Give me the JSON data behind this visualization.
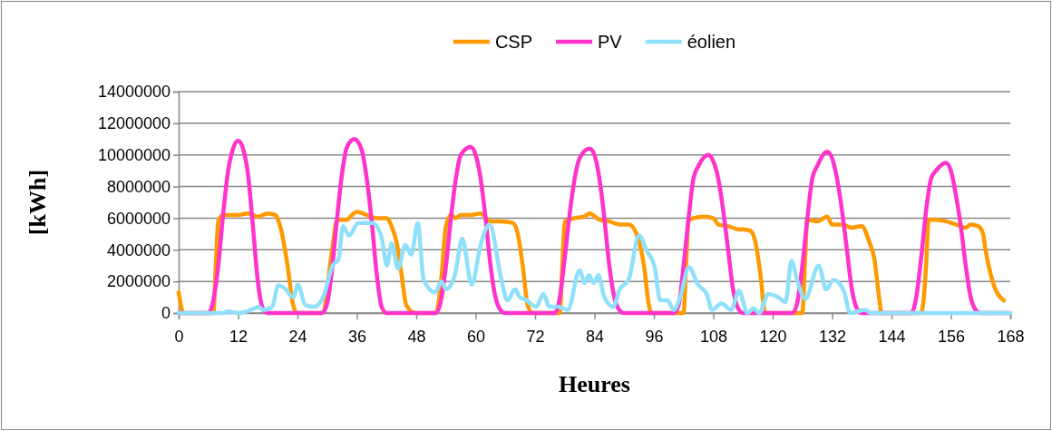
{
  "chart_data": {
    "type": "line",
    "xlabel": "Heures",
    "ylabel": "[kWh]",
    "xlim": [
      0,
      168
    ],
    "xticks": [
      0,
      12,
      24,
      36,
      48,
      60,
      72,
      84,
      96,
      108,
      120,
      132,
      144,
      156,
      168
    ],
    "ylim": [
      0,
      14000000
    ],
    "yticks": [
      0,
      2000000,
      4000000,
      6000000,
      8000000,
      10000000,
      12000000,
      14000000
    ],
    "grid": "y",
    "legend": "top",
    "marker": "none",
    "line_style": "solid",
    "series": [
      {
        "name": "CSP",
        "color": "#ff9900",
        "x": [
          0,
          1,
          7,
          7.5,
          8,
          9,
          12,
          14,
          16,
          18,
          19.5,
          20.5,
          22,
          23,
          23.8,
          29,
          31,
          32,
          34,
          35,
          36,
          38,
          40,
          42,
          43,
          44,
          45,
          46,
          47.8,
          52,
          53,
          54,
          55,
          56,
          57,
          59,
          61,
          63,
          65,
          67.5,
          68.5,
          69.5,
          70.5,
          71.5,
          77,
          77.5,
          78,
          80,
          82,
          83,
          85,
          87,
          89,
          91,
          92.5,
          94,
          95,
          95.5,
          102,
          102.5,
          103,
          104,
          106,
          108,
          109,
          111,
          113,
          114,
          115.5,
          116.5,
          117.5,
          118.5,
          126,
          126.5,
          127,
          129,
          131,
          132,
          134,
          136,
          138,
          139.5,
          140.5,
          141.5,
          142,
          150,
          151,
          151.5,
          153,
          155,
          157,
          159,
          160,
          161.5,
          162.5,
          163,
          164,
          165,
          166.7
        ],
        "values": [
          1300000,
          0,
          0,
          3000000,
          5800000,
          6200000,
          6200000,
          6300000,
          6100000,
          6300000,
          6200000,
          5500000,
          3000000,
          700000,
          0,
          0,
          4000000,
          5900000,
          5900000,
          6200000,
          6400000,
          6200000,
          6000000,
          6000000,
          5500000,
          4500000,
          2500000,
          500000,
          0,
          0,
          2000000,
          5500000,
          6200000,
          6000000,
          6200000,
          6200000,
          6300000,
          5800000,
          5800000,
          5700000,
          5000000,
          3000000,
          500000,
          0,
          0,
          3000000,
          5800000,
          6000000,
          6100000,
          6300000,
          5900000,
          5800000,
          5600000,
          5600000,
          5000000,
          3000000,
          500000,
          0,
          0,
          3000000,
          5800000,
          6000000,
          6100000,
          6000000,
          5600000,
          5500000,
          5300000,
          5300000,
          5200000,
          4500000,
          2500000,
          0,
          0,
          3000000,
          5900000,
          5800000,
          6100000,
          5600000,
          5600000,
          5400000,
          5500000,
          4500000,
          3500000,
          1000000,
          0,
          0,
          3000000,
          5900000,
          5900000,
          5800000,
          5600000,
          5400000,
          5600000,
          5500000,
          5000000,
          4000000,
          2500000,
          1500000,
          800000
        ]
      },
      {
        "name": "PV",
        "color": "#ff33cc",
        "x": [
          0,
          6,
          7,
          8,
          9,
          10,
          11,
          12,
          13,
          14,
          15,
          16,
          17,
          18,
          29,
          30,
          31,
          32,
          33,
          34,
          35.5,
          37,
          38,
          39,
          40,
          41,
          42,
          52,
          53,
          54,
          55,
          56,
          57,
          59,
          60,
          61,
          62,
          63,
          64,
          65,
          66,
          76,
          77,
          78,
          79,
          80,
          81,
          83,
          84,
          85,
          86,
          87,
          88,
          89,
          90,
          100,
          101,
          102,
          103,
          104,
          105,
          107,
          108,
          109,
          110,
          111,
          112,
          113,
          114,
          124,
          125,
          126,
          127,
          128,
          129,
          131,
          132,
          133,
          134,
          135,
          136,
          137,
          138,
          148,
          149,
          150,
          151,
          152,
          153,
          155,
          156,
          157,
          158,
          159,
          160,
          161,
          162,
          168
        ],
        "values": [
          0,
          0,
          800000,
          3000000,
          6300000,
          9000000,
          10400000,
          10900000,
          10400000,
          8800000,
          5500000,
          2000000,
          300000,
          0,
          0,
          600000,
          2800000,
          6000000,
          8800000,
          10500000,
          11000000,
          10300000,
          8500000,
          5800000,
          2500000,
          400000,
          0,
          0,
          800000,
          3000000,
          6000000,
          8500000,
          10000000,
          10500000,
          10000000,
          8500000,
          6000000,
          3000000,
          1000000,
          200000,
          0,
          0,
          1000000,
          3500000,
          6300000,
          8500000,
          9800000,
          10400000,
          10000000,
          8500000,
          6000000,
          3000000,
          1000000,
          200000,
          0,
          0,
          500000,
          3000000,
          6000000,
          8500000,
          9300000,
          10000000,
          9600000,
          8500000,
          6500000,
          4000000,
          1500000,
          300000,
          0,
          0,
          700000,
          3000000,
          6000000,
          8500000,
          9300000,
          10200000,
          9800000,
          8500000,
          6500000,
          4000000,
          1500000,
          300000,
          0,
          0,
          1000000,
          3500000,
          6500000,
          8500000,
          9000000,
          9500000,
          9000000,
          7500000,
          5500000,
          3000000,
          1000000,
          200000,
          0,
          0
        ]
      },
      {
        "name": "éolien",
        "color": "#8fe0fa",
        "x": [
          0,
          9,
          10,
          12,
          15,
          16.2,
          17,
          18.9,
          20.1,
          21.3,
          23.2,
          24.1,
          25.6,
          27.4,
          29.2,
          31.1,
          32.3,
          33.2,
          34.4,
          36.3,
          39.1,
          40.9,
          42.1,
          43,
          44.3,
          45.8,
          47,
          48.3,
          49.5,
          51.8,
          53.1,
          54,
          55.8,
          57.3,
          59.2,
          61,
          62.8,
          65.2,
          66.4,
          68,
          68.9,
          70.1,
          72.2,
          73.7,
          74.9,
          76.7,
          78.6,
          81,
          82,
          82.9,
          83.8,
          84.8,
          86,
          87.8,
          89.1,
          90.9,
          93,
          94.6,
          96.1,
          97.3,
          98.8,
          100,
          101.3,
          103.1,
          104.9,
          106.7,
          107.7,
          109.7,
          111.6,
          113.2,
          114.9,
          116.1,
          117.3,
          119.1,
          121.1,
          122.6,
          123.8,
          125,
          126.6,
          129.3,
          130.8,
          132.3,
          134.4,
          135.6,
          138.7,
          139.9,
          168
        ],
        "values": [
          0,
          0,
          100000,
          0,
          250000,
          400000,
          200000,
          400000,
          1750000,
          1600000,
          1000000,
          1800000,
          500000,
          400000,
          1000000,
          3000000,
          3400000,
          5500000,
          4900000,
          5700000,
          5700000,
          4900000,
          3000000,
          4400000,
          2800000,
          4300000,
          3700000,
          5700000,
          2100000,
          1300000,
          2000000,
          1500000,
          2400000,
          4700000,
          1800000,
          4300000,
          5600000,
          2100000,
          800000,
          1500000,
          1000000,
          850000,
          400000,
          1200000,
          400000,
          400000,
          200000,
          2700000,
          1900000,
          2400000,
          1900000,
          2400000,
          1000000,
          400000,
          1500000,
          2100000,
          4900000,
          3900000,
          3000000,
          800000,
          800000,
          200000,
          1000000,
          2900000,
          1800000,
          1200000,
          200000,
          600000,
          200000,
          1400000,
          0,
          300000,
          0,
          1200000,
          1000000,
          700000,
          3300000,
          2000000,
          900000,
          3000000,
          1500000,
          2100000,
          1400000,
          0,
          200000,
          0,
          0
        ]
      }
    ]
  }
}
